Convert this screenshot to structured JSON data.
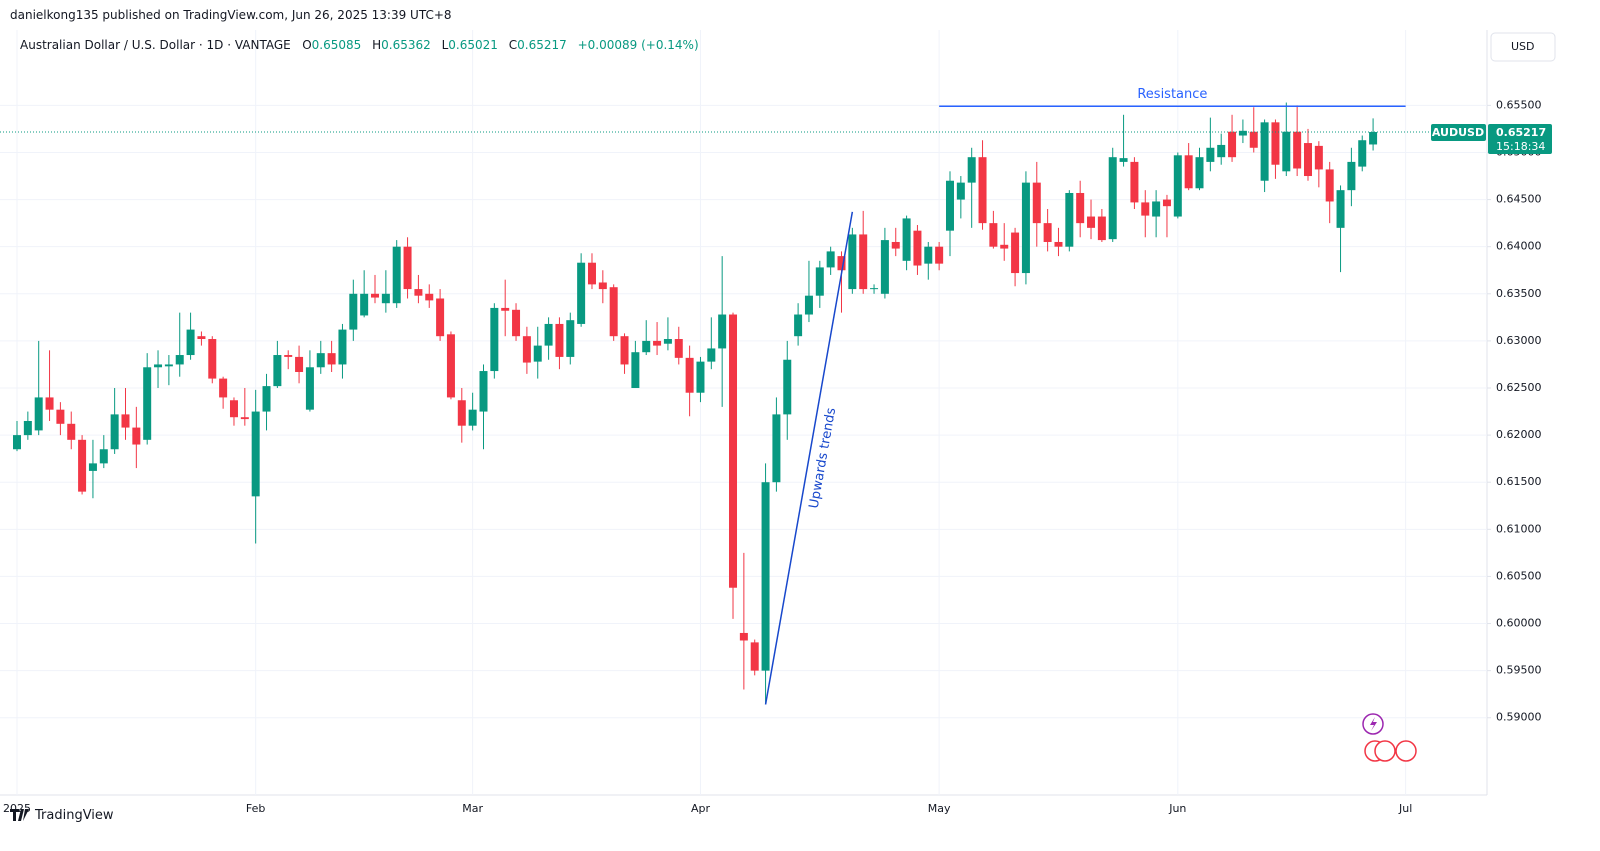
{
  "header": {
    "publisher": "danielkong135 published on TradingView.com, Jun 26, 2025 13:39 UTC+8",
    "logo": "TradingView",
    "currency_button": "USD"
  },
  "chart_data": {
    "type": "candlestick",
    "title": "Australian Dollar / U.S. Dollar · 1D · VANTAGE",
    "legend": {
      "o_label": "O",
      "o": 0.65085,
      "h_label": "H",
      "h": 0.65362,
      "l_label": "L",
      "l": 0.65021,
      "c_label": "C",
      "c": 0.65217,
      "change": "+0.00089 (+0.14%)"
    },
    "up_color": "#089981",
    "down_color": "#f23645",
    "open": [
      0.6185,
      0.62,
      0.6205,
      0.624,
      0.6227,
      0.6212,
      0.6195,
      0.6162,
      0.617,
      0.6185,
      0.6222,
      0.6208,
      0.6195,
      0.6272,
      0.6273,
      0.6275,
      0.6285,
      0.6305,
      0.6302,
      0.626,
      0.6237,
      0.6219,
      0.6135,
      0.6225,
      0.6252,
      0.6285,
      0.6283,
      0.6227,
      0.6272,
      0.6287,
      0.6275,
      0.6312,
      0.6327,
      0.635,
      0.634,
      0.634,
      0.64,
      0.6355,
      0.635,
      0.6345,
      0.6307,
      0.6237,
      0.621,
      0.6225,
      0.6268,
      0.6335,
      0.6333,
      0.6305,
      0.6278,
      0.6295,
      0.6318,
      0.6283,
      0.6318,
      0.6383,
      0.6362,
      0.6357,
      0.6305,
      0.625,
      0.6288,
      0.63,
      0.6297,
      0.6302,
      0.6282,
      0.6245,
      0.6278,
      0.6292,
      0.6328,
      0.599,
      0.598,
      0.595,
      0.615,
      0.6222,
      0.6305,
      0.6328,
      0.6348,
      0.6378,
      0.639,
      0.6355,
      0.6413,
      0.6355,
      0.635,
      0.6405,
      0.6385,
      0.6417,
      0.6382,
      0.64,
      0.6417,
      0.645,
      0.6468,
      0.6495,
      0.6425,
      0.6402,
      0.6415,
      0.6372,
      0.6468,
      0.6425,
      0.6405,
      0.64,
      0.6457,
      0.6432,
      0.6432,
      0.6408,
      0.649,
      0.649,
      0.6447,
      0.6432,
      0.645,
      0.6432,
      0.6497,
      0.6462,
      0.649,
      0.6495,
      0.6522,
      0.6518,
      0.6522,
      0.647,
      0.6532,
      0.648,
      0.6522,
      0.651,
      0.6507,
      0.6482,
      0.642,
      0.646,
      0.6485,
      0.65085
    ],
    "high": [
      0.6215,
      0.6225,
      0.63,
      0.629,
      0.6235,
      0.6225,
      0.62,
      0.6195,
      0.62,
      0.625,
      0.625,
      0.623,
      0.6287,
      0.629,
      0.6285,
      0.633,
      0.633,
      0.631,
      0.6305,
      0.6262,
      0.624,
      0.625,
      0.6248,
      0.6265,
      0.63,
      0.629,
      0.6295,
      0.629,
      0.63,
      0.63,
      0.6318,
      0.6365,
      0.6375,
      0.637,
      0.6375,
      0.6407,
      0.641,
      0.637,
      0.636,
      0.6355,
      0.631,
      0.625,
      0.6245,
      0.6275,
      0.634,
      0.6365,
      0.634,
      0.6315,
      0.6315,
      0.6325,
      0.6325,
      0.633,
      0.6393,
      0.6393,
      0.6375,
      0.636,
      0.6308,
      0.63,
      0.6322,
      0.632,
      0.6325,
      0.6315,
      0.6295,
      0.6283,
      0.6325,
      0.639,
      0.633,
      0.6075,
      0.5983,
      0.617,
      0.624,
      0.63,
      0.634,
      0.6385,
      0.6385,
      0.64,
      0.6395,
      0.642,
      0.6438,
      0.636,
      0.642,
      0.642,
      0.6433,
      0.6423,
      0.6405,
      0.6405,
      0.648,
      0.6475,
      0.6505,
      0.6513,
      0.6438,
      0.6425,
      0.642,
      0.648,
      0.649,
      0.644,
      0.642,
      0.646,
      0.647,
      0.645,
      0.644,
      0.6505,
      0.654,
      0.6495,
      0.646,
      0.646,
      0.6455,
      0.65,
      0.651,
      0.6505,
      0.6537,
      0.652,
      0.654,
      0.6535,
      0.6548,
      0.6535,
      0.6535,
      0.6553,
      0.655,
      0.6525,
      0.6512,
      0.649,
      0.6465,
      0.6505,
      0.6518,
      0.65362
    ],
    "low": [
      0.6183,
      0.6195,
      0.62,
      0.6215,
      0.62,
      0.6185,
      0.6137,
      0.6133,
      0.6165,
      0.618,
      0.6195,
      0.6165,
      0.619,
      0.625,
      0.6253,
      0.6262,
      0.628,
      0.6295,
      0.6255,
      0.6228,
      0.621,
      0.621,
      0.6085,
      0.6205,
      0.625,
      0.627,
      0.6255,
      0.6225,
      0.6265,
      0.6267,
      0.626,
      0.63,
      0.6325,
      0.634,
      0.633,
      0.6335,
      0.6345,
      0.634,
      0.6335,
      0.63,
      0.6238,
      0.6192,
      0.6205,
      0.6185,
      0.626,
      0.6305,
      0.63,
      0.6265,
      0.626,
      0.628,
      0.627,
      0.6275,
      0.6315,
      0.6355,
      0.634,
      0.63,
      0.6265,
      0.625,
      0.6285,
      0.6285,
      0.629,
      0.6275,
      0.622,
      0.6235,
      0.627,
      0.623,
      0.6005,
      0.593,
      0.5945,
      0.5915,
      0.614,
      0.6195,
      0.6295,
      0.632,
      0.6335,
      0.637,
      0.633,
      0.635,
      0.635,
      0.635,
      0.6345,
      0.639,
      0.6375,
      0.637,
      0.6365,
      0.6375,
      0.639,
      0.643,
      0.642,
      0.6418,
      0.6398,
      0.6385,
      0.6358,
      0.636,
      0.64,
      0.6395,
      0.639,
      0.6395,
      0.641,
      0.6408,
      0.6405,
      0.6405,
      0.6485,
      0.644,
      0.641,
      0.641,
      0.641,
      0.643,
      0.646,
      0.646,
      0.648,
      0.6487,
      0.649,
      0.651,
      0.65,
      0.6458,
      0.6472,
      0.6475,
      0.6475,
      0.647,
      0.6463,
      0.6425,
      0.6373,
      0.6443,
      0.648,
      0.65021
    ],
    "close": [
      0.62,
      0.6215,
      0.624,
      0.6227,
      0.6212,
      0.6195,
      0.614,
      0.617,
      0.6185,
      0.6222,
      0.6208,
      0.619,
      0.6272,
      0.6275,
      0.6275,
      0.6285,
      0.6312,
      0.6302,
      0.626,
      0.624,
      0.6219,
      0.6217,
      0.6225,
      0.6252,
      0.6285,
      0.6283,
      0.6267,
      0.6272,
      0.6287,
      0.6275,
      0.6312,
      0.635,
      0.635,
      0.6346,
      0.635,
      0.64,
      0.6355,
      0.6348,
      0.6343,
      0.6305,
      0.624,
      0.621,
      0.6227,
      0.6268,
      0.6335,
      0.6332,
      0.6305,
      0.6277,
      0.6295,
      0.6318,
      0.6283,
      0.6322,
      0.6383,
      0.636,
      0.6355,
      0.6305,
      0.6275,
      0.6288,
      0.63,
      0.6295,
      0.6302,
      0.6282,
      0.6245,
      0.6278,
      0.6292,
      0.6328,
      0.6038,
      0.5982,
      0.595,
      0.615,
      0.6222,
      0.628,
      0.6328,
      0.6348,
      0.6378,
      0.6395,
      0.6375,
      0.6413,
      0.6355,
      0.6356,
      0.6407,
      0.6398,
      0.643,
      0.638,
      0.64,
      0.6382,
      0.647,
      0.6468,
      0.6495,
      0.6425,
      0.64,
      0.6398,
      0.6372,
      0.6468,
      0.6425,
      0.6405,
      0.64,
      0.6457,
      0.6425,
      0.642,
      0.6407,
      0.6495,
      0.6494,
      0.6447,
      0.6433,
      0.6448,
      0.6443,
      0.6497,
      0.6462,
      0.6495,
      0.6505,
      0.6508,
      0.6495,
      0.6523,
      0.6505,
      0.6532,
      0.6487,
      0.6522,
      0.6483,
      0.6475,
      0.6482,
      0.6448,
      0.646,
      0.649,
      0.6513,
      0.65217
    ],
    "xlim": [
      -1.567,
      135.5
    ],
    "xticks": [
      {
        "value": 0,
        "label": "2025"
      },
      {
        "value": 22,
        "label": "Feb"
      },
      {
        "value": 42,
        "label": "Mar"
      },
      {
        "value": 63,
        "label": "Apr"
      },
      {
        "value": 85,
        "label": "May"
      },
      {
        "value": 107,
        "label": "Jun"
      },
      {
        "value": 128,
        "label": "Jul"
      }
    ],
    "ylim": [
      0.5818,
      0.663
    ],
    "yticks": [
      {
        "value": 0.59,
        "label": "0.59000"
      },
      {
        "value": 0.595,
        "label": "0.59500"
      },
      {
        "value": 0.6,
        "label": "0.60000"
      },
      {
        "value": 0.605,
        "label": "0.60500"
      },
      {
        "value": 0.61,
        "label": "0.61000"
      },
      {
        "value": 0.615,
        "label": "0.61500"
      },
      {
        "value": 0.62,
        "label": "0.62000"
      },
      {
        "value": 0.625,
        "label": "0.62500"
      },
      {
        "value": 0.63,
        "label": "0.63000"
      },
      {
        "value": 0.635,
        "label": "0.63500"
      },
      {
        "value": 0.64,
        "label": "0.64000"
      },
      {
        "value": 0.645,
        "label": "0.64500"
      },
      {
        "value": 0.65,
        "label": "0.65000"
      },
      {
        "value": 0.655,
        "label": "0.65500"
      }
    ],
    "grid": true,
    "lines": [
      {
        "label": "Resistance",
        "x": [
          85,
          128
        ],
        "y": [
          0.6549,
          0.6549
        ],
        "color": "#2962ff"
      },
      {
        "label": "Upwards trends",
        "x": [
          69,
          77
        ],
        "y": [
          0.5914,
          0.6437
        ],
        "color": "#1848cc"
      }
    ],
    "price_tag": {
      "symbol": "AUDUSD",
      "price": 0.65217,
      "countdown": "15:18:34",
      "color": "#089981"
    }
  }
}
